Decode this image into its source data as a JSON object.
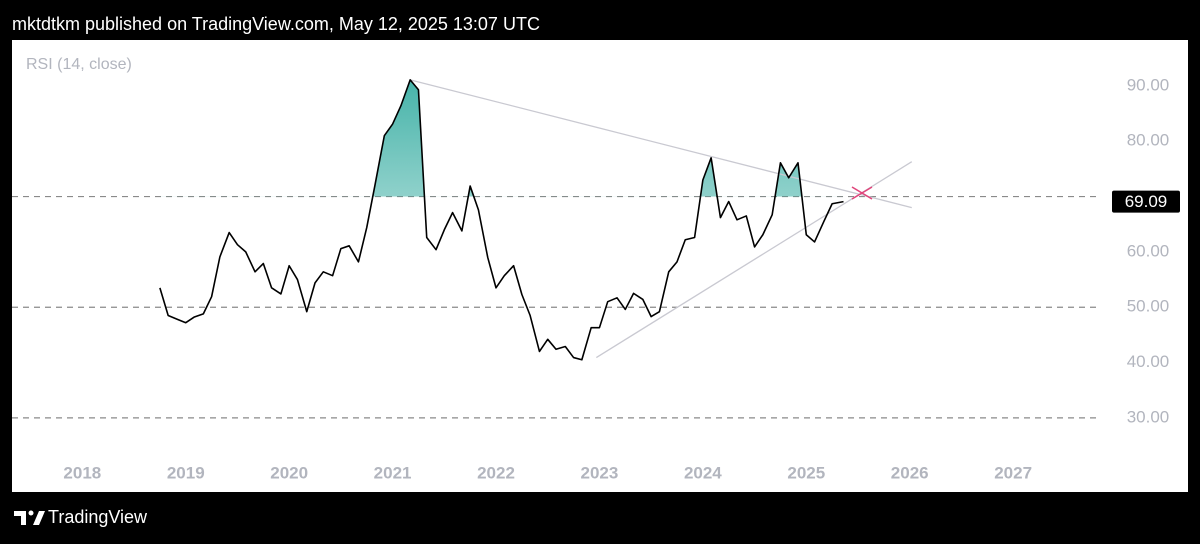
{
  "header": "mktdtkm published on TradingView.com, May 12, 2025 13:07 UTC",
  "footer_brand": "TradingView",
  "chart_data": {
    "type": "line",
    "title": "RSI (14, close)",
    "color": "#000000",
    "x": [
      2018.75,
      2018.83,
      2018.92,
      2019.0,
      2019.08,
      2019.17,
      2019.25,
      2019.33,
      2019.42,
      2019.5,
      2019.58,
      2019.67,
      2019.75,
      2019.83,
      2019.92,
      2020.0,
      2020.08,
      2020.17,
      2020.25,
      2020.33,
      2020.42,
      2020.5,
      2020.58,
      2020.67,
      2020.75,
      2020.83,
      2020.92,
      2021.0,
      2021.08,
      2021.17,
      2021.25,
      2021.33,
      2021.42,
      2021.5,
      2021.58,
      2021.67,
      2021.75,
      2021.83,
      2021.92,
      2022.0,
      2022.08,
      2022.17,
      2022.25,
      2022.33,
      2022.42,
      2022.5,
      2022.58,
      2022.67,
      2022.75,
      2022.83,
      2022.92,
      2023.0,
      2023.08,
      2023.17,
      2023.25,
      2023.33,
      2023.42,
      2023.5,
      2023.58,
      2023.67,
      2023.75,
      2023.83,
      2023.92,
      2024.0,
      2024.08,
      2024.17,
      2024.25,
      2024.33,
      2024.42,
      2024.5,
      2024.58,
      2024.67,
      2024.75,
      2024.83,
      2024.92,
      2025.0,
      2025.08,
      2025.17,
      2025.25,
      2025.36
    ],
    "values": [
      53.5,
      48.5,
      47.8,
      47.2,
      48.2,
      48.8,
      51.9,
      59.1,
      63.5,
      61.3,
      60.0,
      56.4,
      57.9,
      53.5,
      52.4,
      57.5,
      55.0,
      49.2,
      54.4,
      56.4,
      55.7,
      60.6,
      61.1,
      58.2,
      64.4,
      72.1,
      81.0,
      83.1,
      86.4,
      91.1,
      89.3,
      62.6,
      60.4,
      64.0,
      67.1,
      63.8,
      71.9,
      67.6,
      59.0,
      53.5,
      55.7,
      57.5,
      52.3,
      48.5,
      42.0,
      44.2,
      42.4,
      42.9,
      40.9,
      40.5,
      46.3,
      46.3,
      51.0,
      51.7,
      49.6,
      52.5,
      51.4,
      48.3,
      49.2,
      56.4,
      58.2,
      62.2,
      62.6,
      73.0,
      77.0,
      66.2,
      69.1,
      65.8,
      66.5,
      60.9,
      63.1,
      66.7,
      76.1,
      73.4,
      76.1,
      63.1,
      61.8,
      65.5,
      68.7,
      69.09
    ],
    "last_value": 69.09,
    "overbought_fill": 70,
    "fill_color": "#26a69a",
    "hlines": [
      70,
      50,
      30
    ],
    "trendlines": [
      {
        "x": [
          2021.17,
          2026.02
        ],
        "y": [
          91.1,
          68.0
        ]
      },
      {
        "x": [
          2022.97,
          2026.02
        ],
        "y": [
          40.9,
          76.3
        ]
      }
    ],
    "trendline_color": "#c9c9d1",
    "xlim": [
      2017.32,
      2027.84
    ],
    "ylim": [
      16.6,
      98.3
    ],
    "xticks": [
      2018,
      2019,
      2020,
      2021,
      2022,
      2023,
      2024,
      2025,
      2026,
      2027
    ],
    "yticks": [
      {
        "value": 90,
        "label": "90.00"
      },
      {
        "value": 80,
        "label": "80.00"
      },
      {
        "value": 60,
        "label": "60.00"
      },
      {
        "value": 50,
        "label": "50.00"
      },
      {
        "value": 40,
        "label": "40.00"
      },
      {
        "value": 30,
        "label": "30.00"
      }
    ]
  }
}
